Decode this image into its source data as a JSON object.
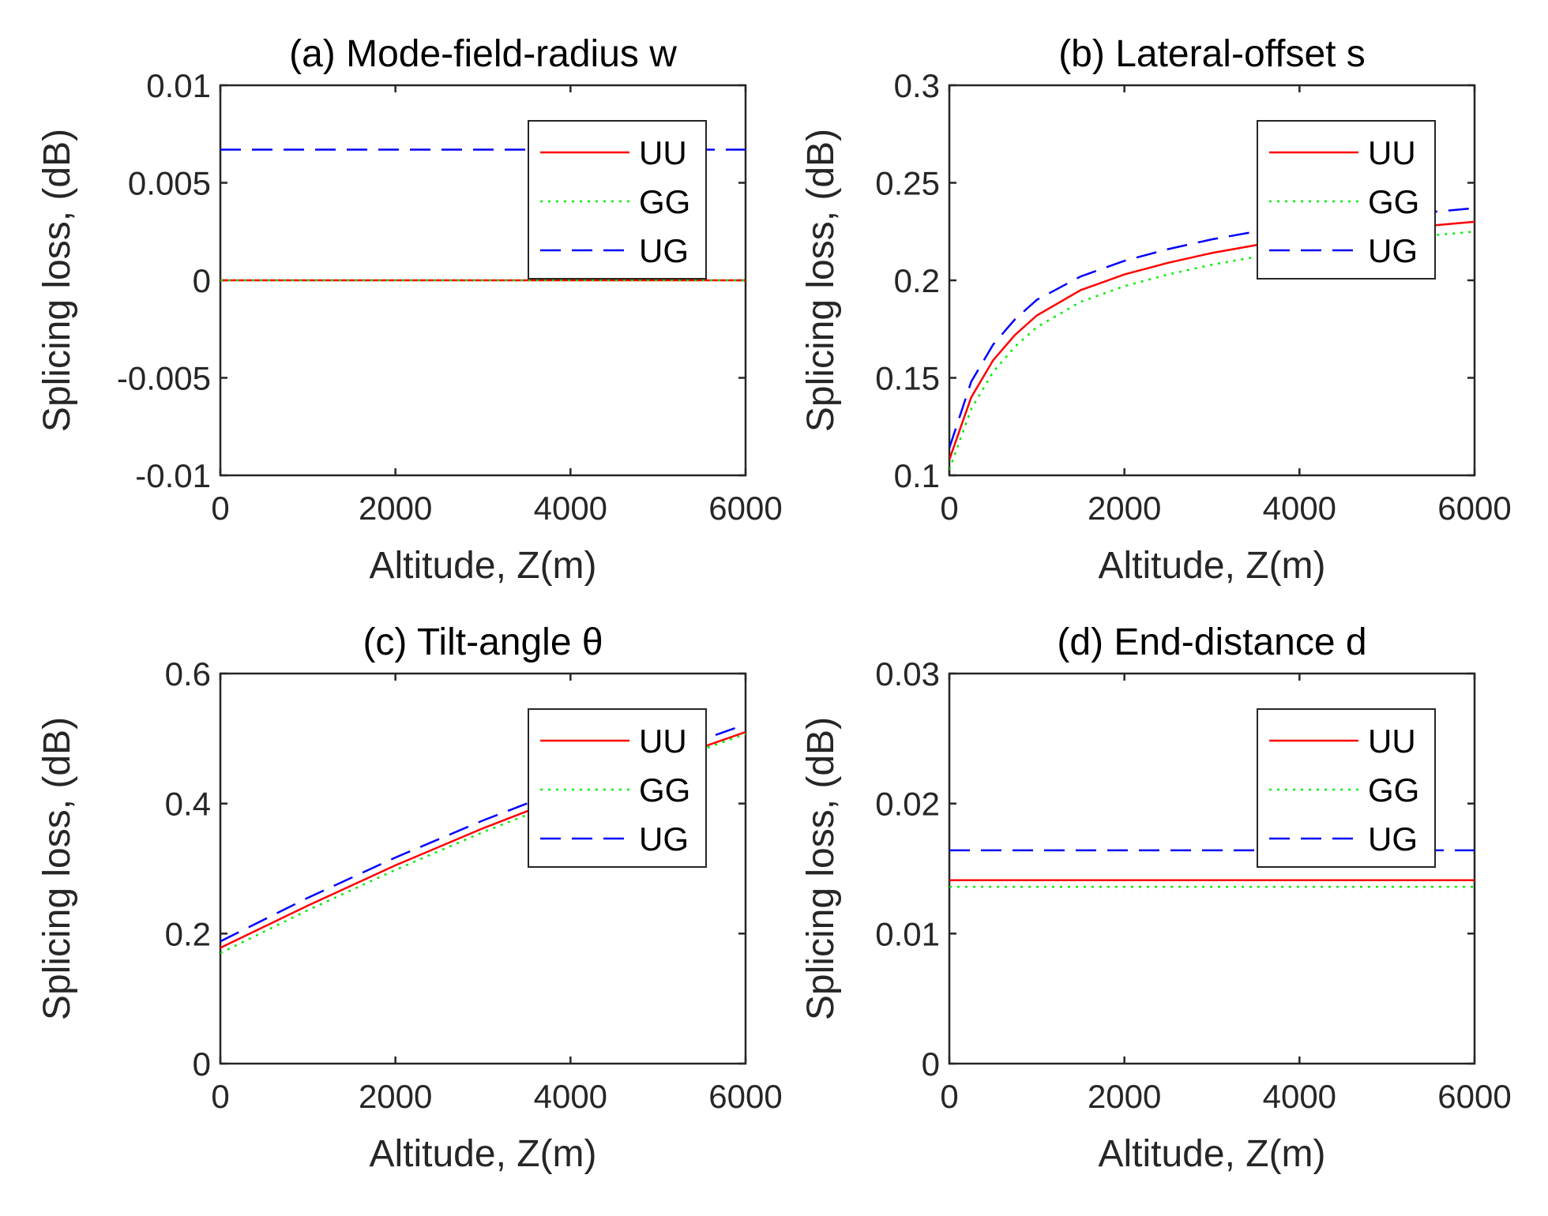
{
  "colors": {
    "UU": "#ff0000",
    "GG": "#00ee00",
    "UG": "#0000ff"
  },
  "chart_data": [
    {
      "type": "line",
      "title": "(a) Mode-field-radius w",
      "xlabel": "Altitude, Z(m)",
      "ylabel": "Splicing loss, (dB)",
      "xlim": [
        0,
        6000
      ],
      "ylim": [
        -0.01,
        0.01
      ],
      "xticks": [
        0,
        2000,
        4000,
        6000
      ],
      "xtick_labels": [
        "0",
        "2000",
        "4000",
        "6000"
      ],
      "yticks": [
        -0.01,
        -0.005,
        0,
        0.005,
        0.01
      ],
      "ytick_labels": [
        "-0.01",
        "-0.005",
        "0",
        "0.005",
        "0.01"
      ],
      "legend": "top-right",
      "grid": false,
      "series": [
        {
          "name": "UU",
          "style": "solid",
          "x": [
            0,
            6000
          ],
          "y": [
            0,
            0
          ]
        },
        {
          "name": "GG",
          "style": "dotted",
          "x": [
            0,
            6000
          ],
          "y": [
            0,
            0
          ]
        },
        {
          "name": "UG",
          "style": "dashed",
          "x": [
            0,
            6000
          ],
          "y": [
            0.0067,
            0.0067
          ]
        }
      ]
    },
    {
      "type": "line",
      "title": "(b) Lateral-offset s",
      "xlabel": "Altitude, Z(m)",
      "ylabel": "Splicing loss, (dB)",
      "xlim": [
        0,
        6000
      ],
      "ylim": [
        0.1,
        0.3
      ],
      "xticks": [
        0,
        2000,
        4000,
        6000
      ],
      "xtick_labels": [
        "0",
        "2000",
        "4000",
        "6000"
      ],
      "yticks": [
        0.1,
        0.15,
        0.2,
        0.25,
        0.3
      ],
      "ytick_labels": [
        "0.1",
        "0.15",
        "0.2",
        "0.25",
        "0.3"
      ],
      "legend": "top-right",
      "grid": false,
      "series": [
        {
          "name": "UU",
          "style": "solid",
          "x": [
            0,
            250,
            500,
            750,
            1000,
            1500,
            2000,
            2500,
            3000,
            3500,
            4000,
            4500,
            5000,
            5500,
            6000
          ],
          "y": [
            0.108,
            0.14,
            0.159,
            0.172,
            0.182,
            0.195,
            0.203,
            0.209,
            0.214,
            0.218,
            0.221,
            0.224,
            0.226,
            0.228,
            0.23
          ]
        },
        {
          "name": "GG",
          "style": "dotted",
          "x": [
            0,
            250,
            500,
            750,
            1000,
            1500,
            2000,
            2500,
            3000,
            3500,
            4000,
            4500,
            5000,
            5500,
            6000
          ],
          "y": [
            0.103,
            0.134,
            0.153,
            0.166,
            0.176,
            0.189,
            0.197,
            0.203,
            0.208,
            0.212,
            0.216,
            0.218,
            0.221,
            0.223,
            0.225
          ]
        },
        {
          "name": "UG",
          "style": "dashed",
          "x": [
            0,
            250,
            500,
            750,
            1000,
            1500,
            2000,
            2500,
            3000,
            3500,
            4000,
            4500,
            5000,
            5500,
            6000
          ],
          "y": [
            0.114,
            0.148,
            0.167,
            0.18,
            0.19,
            0.202,
            0.21,
            0.216,
            0.221,
            0.225,
            0.228,
            0.231,
            0.233,
            0.235,
            0.237
          ]
        }
      ]
    },
    {
      "type": "line",
      "title": "(c) Tilt-angle θ",
      "xlabel": "Altitude, Z(m)",
      "ylabel": "Splicing loss, (dB)",
      "xlim": [
        0,
        6000
      ],
      "ylim": [
        0,
        0.6
      ],
      "xticks": [
        0,
        2000,
        4000,
        6000
      ],
      "xtick_labels": [
        "0",
        "2000",
        "4000",
        "6000"
      ],
      "yticks": [
        0,
        0.2,
        0.4,
        0.6
      ],
      "ytick_labels": [
        "0",
        "0.2",
        "0.4",
        "0.6"
      ],
      "legend": "top-right",
      "grid": false,
      "series": [
        {
          "name": "UU",
          "style": "solid",
          "x": [
            0,
            1000,
            2000,
            3000,
            4000,
            5000,
            6000
          ],
          "y": [
            0.178,
            0.243,
            0.305,
            0.362,
            0.414,
            0.463,
            0.51
          ]
        },
        {
          "name": "GG",
          "style": "dotted",
          "x": [
            0,
            1000,
            2000,
            3000,
            4000,
            5000,
            6000
          ],
          "y": [
            0.17,
            0.236,
            0.298,
            0.356,
            0.409,
            0.459,
            0.507
          ]
        },
        {
          "name": "UG",
          "style": "dashed",
          "x": [
            0,
            1000,
            2000,
            3000,
            4000,
            5000,
            5900
          ],
          "y": [
            0.188,
            0.255,
            0.317,
            0.374,
            0.426,
            0.474,
            0.517
          ]
        }
      ]
    },
    {
      "type": "line",
      "title": "(d) End-distance d",
      "xlabel": "Altitude, Z(m)",
      "ylabel": "Splicing loss, (dB)",
      "xlim": [
        0,
        6000
      ],
      "ylim": [
        0,
        0.03
      ],
      "xticks": [
        0,
        2000,
        4000,
        6000
      ],
      "xtick_labels": [
        "0",
        "2000",
        "4000",
        "6000"
      ],
      "yticks": [
        0,
        0.01,
        0.02,
        0.03
      ],
      "ytick_labels": [
        "0",
        "0.01",
        "0.02",
        "0.03"
      ],
      "legend": "top-right",
      "grid": false,
      "series": [
        {
          "name": "UU",
          "style": "solid",
          "x": [
            0,
            6000
          ],
          "y": [
            0.0141,
            0.0141
          ]
        },
        {
          "name": "GG",
          "style": "dotted",
          "x": [
            0,
            6000
          ],
          "y": [
            0.0136,
            0.0136
          ]
        },
        {
          "name": "UG",
          "style": "dashed",
          "x": [
            0,
            6000
          ],
          "y": [
            0.0164,
            0.0164
          ]
        }
      ]
    }
  ]
}
